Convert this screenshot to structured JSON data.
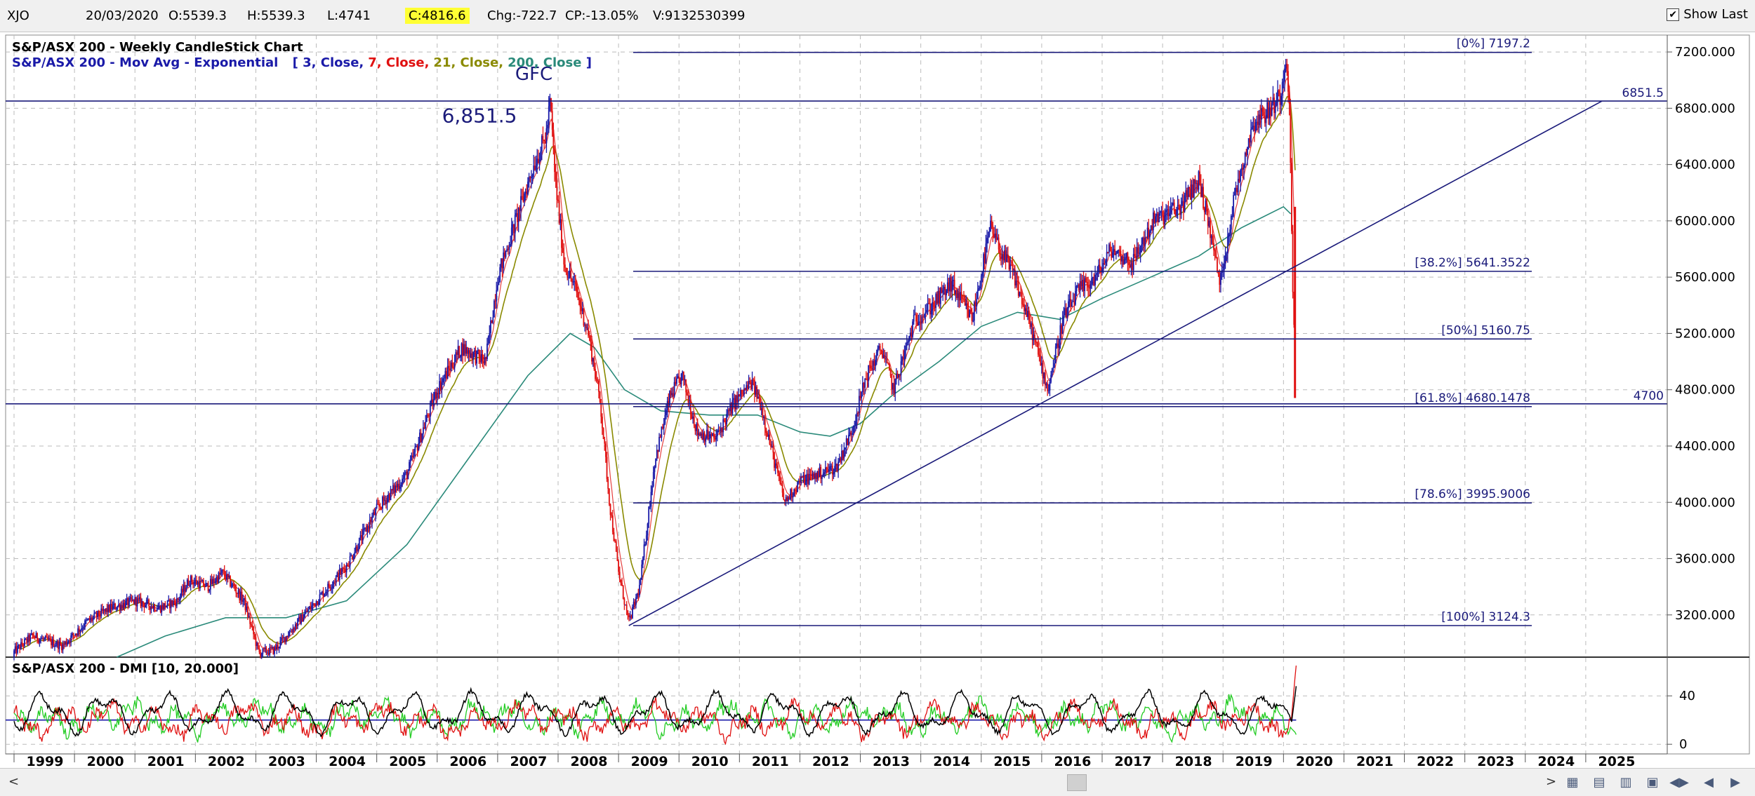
{
  "topbar": {
    "symbol": "XJO",
    "date": "20/03/2020",
    "open": "O:5539.3",
    "high": "H:5539.3",
    "low": "L:4741",
    "close": "C:4816.6",
    "change": "Chg:-722.7",
    "change_pct": "CP:-13.05%",
    "volume": "V:9132530399",
    "show_last_label": "Show Last",
    "show_last_checked": true
  },
  "colors": {
    "candle_up": "#1a1aa8",
    "candle_down": "#e01010",
    "ema3": "#1a1aa8",
    "ema7": "#e01010",
    "ema21": "#8a8a00",
    "ema200": "#2a8a7a",
    "lines": "#1a1a7a",
    "dmi_plus": "#22cc22",
    "dmi_minus": "#e01010",
    "adx": "#000000"
  },
  "chart_data": [
    {
      "type": "candlestick",
      "title": "S&P/ASX 200 - Weekly CandleStick Chart",
      "subtitle_prefix": "S&P/ASX 200 - Mov Avg - Exponential",
      "ema_legend": [
        {
          "text": "3, Close,",
          "color": "#1a1aa8"
        },
        {
          "text": "7, Close,",
          "color": "#e01010"
        },
        {
          "text": "21, Close,",
          "color": "#8a8a00"
        },
        {
          "text": "200, Close",
          "color": "#2a8a7a"
        }
      ],
      "x_labels": [
        "1999",
        "2000",
        "2001",
        "2002",
        "2003",
        "2004",
        "2005",
        "2006",
        "2007",
        "2008",
        "2009",
        "2010",
        "2011",
        "2012",
        "2013",
        "2014",
        "2015",
        "2016",
        "2017",
        "2018",
        "2019",
        "2020",
        "2021",
        "2022",
        "2023",
        "2024",
        "2025"
      ],
      "xlim": [
        1999.0,
        2026.0
      ],
      "ylim": [
        2900,
        7320
      ],
      "y_ticks": [
        3200,
        3600,
        4000,
        4400,
        4800,
        5200,
        5600,
        6000,
        6400,
        6800,
        7200
      ],
      "y_tick_labels": [
        "3200.000",
        "3600.000",
        "4000.000",
        "4400.000",
        "4800.000",
        "5200.000",
        "5600.000",
        "6000.000",
        "6400.000",
        "6800.000",
        "7200.000"
      ],
      "grid": true,
      "series_close": [
        [
          1998.9,
          2900
        ],
        [
          1999.3,
          3050
        ],
        [
          1999.8,
          2980
        ],
        [
          2000.2,
          3150
        ],
        [
          2000.6,
          3250
        ],
        [
          2001.0,
          3300
        ],
        [
          2001.4,
          3250
        ],
        [
          2001.7,
          3300
        ],
        [
          2001.9,
          3450
        ],
        [
          2002.2,
          3400
        ],
        [
          2002.45,
          3500
        ],
        [
          2002.8,
          3300
        ],
        [
          2003.05,
          2930
        ],
        [
          2003.3,
          2950
        ],
        [
          2003.6,
          3100
        ],
        [
          2004.0,
          3300
        ],
        [
          2004.5,
          3550
        ],
        [
          2005.0,
          3950
        ],
        [
          2005.5,
          4200
        ],
        [
          2006.0,
          4800
        ],
        [
          2006.4,
          5100
        ],
        [
          2006.8,
          5000
        ],
        [
          2007.0,
          5600
        ],
        [
          2007.3,
          6000
        ],
        [
          2007.6,
          6400
        ],
        [
          2007.8,
          6600
        ],
        [
          2007.87,
          6851.5
        ],
        [
          2007.95,
          6300
        ],
        [
          2008.1,
          5700
        ],
        [
          2008.3,
          5500
        ],
        [
          2008.5,
          5200
        ],
        [
          2008.7,
          4700
        ],
        [
          2008.85,
          4000
        ],
        [
          2009.0,
          3500
        ],
        [
          2009.17,
          3145
        ],
        [
          2009.35,
          3400
        ],
        [
          2009.6,
          4300
        ],
        [
          2009.85,
          4750
        ],
        [
          2010.05,
          4900
        ],
        [
          2010.3,
          4500
        ],
        [
          2010.6,
          4450
        ],
        [
          2010.9,
          4700
        ],
        [
          2011.2,
          4850
        ],
        [
          2011.35,
          4700
        ],
        [
          2011.6,
          4250
        ],
        [
          2011.75,
          4000
        ],
        [
          2012.0,
          4150
        ],
        [
          2012.3,
          4200
        ],
        [
          2012.6,
          4250
        ],
        [
          2012.85,
          4500
        ],
        [
          2013.1,
          4900
        ],
        [
          2013.35,
          5100
        ],
        [
          2013.55,
          4800
        ],
        [
          2013.9,
          5300
        ],
        [
          2014.2,
          5400
        ],
        [
          2014.5,
          5550
        ],
        [
          2014.85,
          5300
        ],
        [
          2015.15,
          5950
        ],
        [
          2015.3,
          5800
        ],
        [
          2015.55,
          5600
        ],
        [
          2015.85,
          5200
        ],
        [
          2016.1,
          4800
        ],
        [
          2016.35,
          5300
        ],
        [
          2016.6,
          5500
        ],
        [
          2016.9,
          5600
        ],
        [
          2017.15,
          5800
        ],
        [
          2017.5,
          5700
        ],
        [
          2017.85,
          6000
        ],
        [
          2018.3,
          6100
        ],
        [
          2018.6,
          6300
        ],
        [
          2018.8,
          5900
        ],
        [
          2018.95,
          5550
        ],
        [
          2019.2,
          6200
        ],
        [
          2019.5,
          6700
        ],
        [
          2019.8,
          6800
        ],
        [
          2019.95,
          6900
        ],
        [
          2020.05,
          7197.2
        ],
        [
          2020.1,
          6800
        ],
        [
          2020.15,
          5539.3
        ],
        [
          2020.21,
          4816.6
        ]
      ],
      "ema200_points": [
        [
          2000.7,
          2900
        ],
        [
          2001.5,
          3050
        ],
        [
          2002.5,
          3180
        ],
        [
          2003.5,
          3180
        ],
        [
          2004.5,
          3300
        ],
        [
          2005.5,
          3700
        ],
        [
          2006.5,
          4300
        ],
        [
          2007.5,
          4900
        ],
        [
          2008.2,
          5200
        ],
        [
          2008.6,
          5100
        ],
        [
          2009.1,
          4800
        ],
        [
          2009.7,
          4650
        ],
        [
          2010.5,
          4620
        ],
        [
          2011.3,
          4620
        ],
        [
          2012.0,
          4500
        ],
        [
          2012.5,
          4470
        ],
        [
          2013.0,
          4560
        ],
        [
          2013.5,
          4750
        ],
        [
          2014.3,
          5000
        ],
        [
          2015.0,
          5250
        ],
        [
          2015.6,
          5350
        ],
        [
          2016.3,
          5300
        ],
        [
          2017.0,
          5450
        ],
        [
          2017.8,
          5600
        ],
        [
          2018.6,
          5750
        ],
        [
          2019.3,
          5950
        ],
        [
          2020.0,
          6100
        ],
        [
          2020.12,
          6050
        ]
      ],
      "fib_levels": [
        {
          "label": "[0%] 7197.2",
          "value": 7197.2
        },
        {
          "label": "[38.2%] 5641.3522",
          "value": 5641.3522
        },
        {
          "label": "[50%] 5160.75",
          "value": 5160.75
        },
        {
          "label": "[61.8%] 4680.1478",
          "value": 4680.1478
        },
        {
          "label": "[78.6%] 3995.9006",
          "value": 3995.9006
        },
        {
          "label": "[100%] 3124.3",
          "value": 3124.3
        }
      ],
      "horizontal_lines": [
        {
          "label": "6851.5",
          "value": 6851.5
        },
        {
          "label": "4700",
          "value": 4700
        }
      ],
      "trendline": [
        [
          2009.17,
          3124.3
        ],
        [
          2025.27,
          6851.5
        ]
      ],
      "annotations": [
        {
          "text": "GFC",
          "x": 2007.6,
          "y": 7000
        },
        {
          "text": "6,851.5",
          "x": 2006.7,
          "y": 6700
        }
      ]
    },
    {
      "type": "line",
      "title": "S&P/ASX 200 - DMI [10, 20.000]",
      "ylim": [
        -8,
        72
      ],
      "y_ticks": [
        0,
        40
      ],
      "y_tick_labels": [
        "0",
        "40"
      ],
      "reference_line": 20,
      "grid": true
    }
  ],
  "nav_icons": [
    "chart-nav-icon-1",
    "chart-nav-icon-2",
    "chart-nav-icon-3",
    "chart-nav-icon-4",
    "scroll-first-icon",
    "scroll-prev-icon",
    "scroll-next-icon"
  ]
}
